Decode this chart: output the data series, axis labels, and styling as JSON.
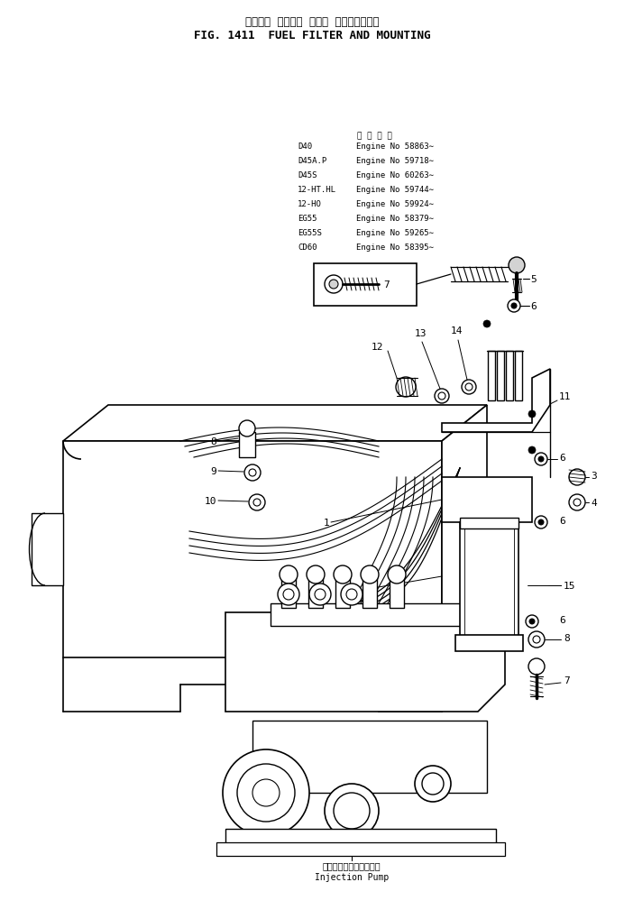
{
  "title_japanese": "フェエル  フィルタ  および  マウンティング",
  "title_english": "FIG. 1411  FUEL FILTER AND MOUNTING",
  "bg_color": "#ffffff",
  "table_header": "適  用  機  種",
  "table_rows": [
    [
      "D40",
      "Engine No 58863∼"
    ],
    [
      "D45A.P",
      "Engine No 59718∼"
    ],
    [
      "D45S",
      "Engine No 60263∼"
    ],
    [
      "12-HT.HL",
      "Engine No 59744∼"
    ],
    [
      "12-HO",
      "Engine No 59924∼"
    ],
    [
      "EG55",
      "Engine No 58379∼"
    ],
    [
      "EG55S",
      "Engine No 59265∼"
    ],
    [
      "CD60",
      "Engine No 58395∼"
    ]
  ],
  "injection_pump_japanese": "インジェクションポンプ",
  "injection_pump_english": "Injection Pump",
  "figsize": [
    6.92,
    10.2
  ],
  "dpi": 100
}
